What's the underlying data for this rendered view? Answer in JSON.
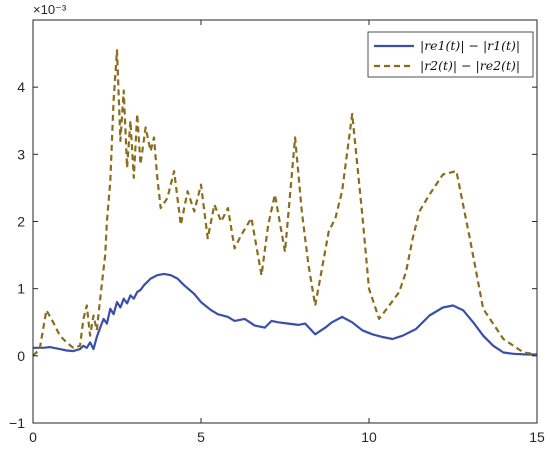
{
  "chart_data": {
    "type": "line",
    "title": "",
    "xlabel": "",
    "ylabel": "",
    "y_exponent_label": "×10⁻³",
    "xlim": [
      0,
      15
    ],
    "ylim": [
      -1,
      5
    ],
    "xticks": [
      0,
      5,
      10,
      15
    ],
    "yticks": [
      -1,
      0,
      1,
      2,
      3,
      4
    ],
    "grid": false,
    "legend_position": "top-right",
    "series": [
      {
        "name": "|re1(t)| − |r1(t)|",
        "color": "#3a4fa8",
        "style": "solid",
        "x": [
          0,
          0.3,
          0.5,
          0.8,
          1.0,
          1.2,
          1.4,
          1.5,
          1.6,
          1.7,
          1.8,
          1.9,
          2.0,
          2.1,
          2.2,
          2.3,
          2.4,
          2.5,
          2.6,
          2.7,
          2.8,
          2.9,
          3.0,
          3.1,
          3.2,
          3.3,
          3.5,
          3.7,
          3.9,
          4.1,
          4.3,
          4.5,
          4.8,
          5.0,
          5.3,
          5.5,
          5.8,
          6.0,
          6.3,
          6.6,
          6.9,
          7.1,
          7.3,
          7.6,
          7.9,
          8.1,
          8.4,
          8.7,
          8.9,
          9.2,
          9.5,
          9.8,
          10.1,
          10.4,
          10.7,
          11.0,
          11.4,
          11.8,
          12.2,
          12.5,
          12.8,
          13.1,
          13.4,
          13.7,
          14.0,
          14.3,
          14.7,
          15.0
        ],
        "y": [
          0.12,
          0.12,
          0.13,
          0.1,
          0.08,
          0.07,
          0.1,
          0.15,
          0.12,
          0.2,
          0.1,
          0.28,
          0.42,
          0.55,
          0.48,
          0.7,
          0.62,
          0.8,
          0.72,
          0.85,
          0.78,
          0.9,
          0.85,
          0.95,
          0.98,
          1.05,
          1.15,
          1.2,
          1.22,
          1.2,
          1.15,
          1.05,
          0.92,
          0.8,
          0.68,
          0.62,
          0.58,
          0.52,
          0.55,
          0.45,
          0.42,
          0.52,
          0.5,
          0.48,
          0.46,
          0.48,
          0.32,
          0.42,
          0.5,
          0.58,
          0.5,
          0.38,
          0.32,
          0.28,
          0.25,
          0.3,
          0.4,
          0.6,
          0.72,
          0.75,
          0.68,
          0.5,
          0.3,
          0.15,
          0.05,
          0.03,
          0.02,
          0.02
        ]
      },
      {
        "name": "|r2(t)| − |re2(t)|",
        "color": "#8a6d1c",
        "style": "dashed",
        "x": [
          0,
          0.2,
          0.4,
          0.6,
          0.8,
          1.0,
          1.2,
          1.4,
          1.5,
          1.6,
          1.7,
          1.8,
          1.9,
          2.0,
          2.1,
          2.15,
          2.2,
          2.3,
          2.4,
          2.5,
          2.6,
          2.7,
          2.8,
          2.9,
          3.0,
          3.1,
          3.2,
          3.35,
          3.5,
          3.6,
          3.7,
          3.8,
          4.0,
          4.2,
          4.4,
          4.6,
          4.8,
          5.0,
          5.2,
          5.4,
          5.6,
          5.8,
          6.0,
          6.2,
          6.5,
          6.8,
          7.0,
          7.2,
          7.5,
          7.8,
          8.0,
          8.2,
          8.4,
          8.6,
          8.8,
          9.0,
          9.2,
          9.5,
          9.8,
          10.0,
          10.3,
          10.6,
          10.9,
          11.1,
          11.3,
          11.5,
          11.8,
          12.2,
          12.6,
          13.0,
          13.4,
          13.8,
          14.0,
          14.3,
          14.6,
          15.0
        ],
        "y": [
          0.0,
          0.1,
          0.68,
          0.5,
          0.3,
          0.2,
          0.12,
          0.15,
          0.55,
          0.75,
          0.3,
          0.6,
          0.38,
          0.85,
          1.3,
          1.5,
          2.0,
          2.6,
          3.8,
          4.55,
          3.2,
          3.95,
          2.8,
          3.5,
          2.65,
          3.6,
          2.85,
          3.4,
          3.05,
          3.25,
          2.65,
          2.2,
          2.35,
          2.75,
          1.95,
          2.45,
          2.15,
          2.55,
          1.75,
          2.25,
          2.0,
          2.2,
          1.6,
          1.8,
          2.05,
          1.2,
          1.95,
          2.4,
          1.55,
          3.25,
          2.15,
          1.35,
          0.75,
          1.3,
          1.85,
          2.05,
          2.45,
          3.6,
          2.1,
          1.0,
          0.55,
          0.75,
          0.95,
          1.25,
          1.75,
          2.15,
          2.4,
          2.7,
          2.75,
          1.75,
          0.7,
          0.4,
          0.25,
          0.15,
          0.05,
          0.02
        ]
      }
    ]
  }
}
